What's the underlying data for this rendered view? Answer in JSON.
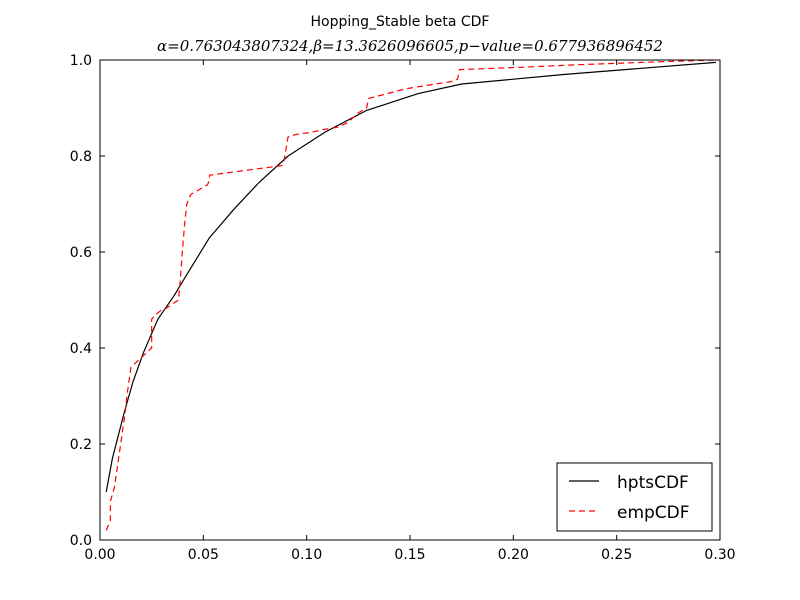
{
  "chart_data": {
    "type": "line",
    "title": "Hopping_Stable beta CDF",
    "subtitle": "α=0.763043807324,β=13.3626096605,p−value=0.677936896452",
    "xlabel": "",
    "ylabel": "",
    "xlim": [
      0.0,
      0.3
    ],
    "ylim": [
      0.0,
      1.0
    ],
    "xticks": [
      "0.00",
      "0.05",
      "0.10",
      "0.15",
      "0.20",
      "0.25",
      "0.30"
    ],
    "yticks": [
      "0.0",
      "0.2",
      "0.4",
      "0.6",
      "0.8",
      "1.0"
    ],
    "grid": false,
    "legend_position": "lower-right",
    "series": [
      {
        "name": "hptsCDF",
        "color": "#000000",
        "style": "solid",
        "x": [
          0.003,
          0.006,
          0.009,
          0.012,
          0.016,
          0.021,
          0.028,
          0.036,
          0.043,
          0.053,
          0.065,
          0.077,
          0.091,
          0.109,
          0.129,
          0.154,
          0.175,
          0.225,
          0.298
        ],
        "y": [
          0.1,
          0.17,
          0.22,
          0.27,
          0.33,
          0.39,
          0.46,
          0.51,
          0.56,
          0.63,
          0.69,
          0.745,
          0.8,
          0.85,
          0.895,
          0.93,
          0.95,
          0.97,
          0.995
        ]
      },
      {
        "name": "empCDF",
        "color": "#ff0000",
        "style": "dashed",
        "x": [
          0.003,
          0.005,
          0.005,
          0.007,
          0.008,
          0.009,
          0.01,
          0.011,
          0.012,
          0.013,
          0.014,
          0.015,
          0.02,
          0.025,
          0.025,
          0.027,
          0.03,
          0.031,
          0.038,
          0.039,
          0.04,
          0.041,
          0.042,
          0.044,
          0.048,
          0.052,
          0.053,
          0.053,
          0.088,
          0.089,
          0.091,
          0.095,
          0.103,
          0.108,
          0.115,
          0.12,
          0.125,
          0.129,
          0.13,
          0.148,
          0.155,
          0.17,
          0.173,
          0.174,
          0.205,
          0.23,
          0.275,
          0.298
        ],
        "y": [
          0.02,
          0.04,
          0.08,
          0.11,
          0.14,
          0.17,
          0.2,
          0.23,
          0.26,
          0.3,
          0.33,
          0.36,
          0.38,
          0.4,
          0.46,
          0.47,
          0.48,
          0.48,
          0.5,
          0.55,
          0.61,
          0.66,
          0.7,
          0.72,
          0.73,
          0.74,
          0.75,
          0.76,
          0.78,
          0.79,
          0.84,
          0.845,
          0.85,
          0.855,
          0.86,
          0.87,
          0.89,
          0.9,
          0.92,
          0.94,
          0.945,
          0.955,
          0.96,
          0.98,
          0.985,
          0.99,
          0.997,
          1.0
        ]
      }
    ]
  }
}
